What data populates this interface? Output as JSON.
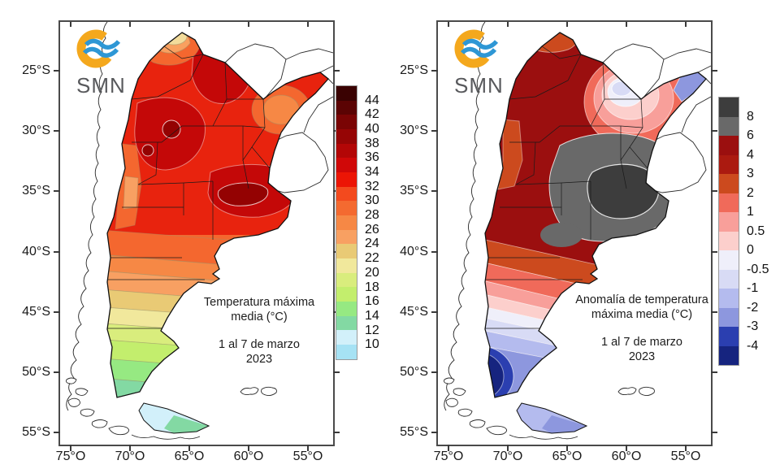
{
  "left_panel": {
    "logo_text": "SMN",
    "caption": {
      "title_line1": "Temperatura máxima",
      "title_line2": "media (°C)",
      "date_line1": "1 al 7 de marzo",
      "date_line2": "2023"
    },
    "y_ticks": [
      "25°S",
      "30°S",
      "35°S",
      "40°S",
      "45°S",
      "50°S",
      "55°S"
    ],
    "x_ticks": [
      "75°O",
      "70°O",
      "65°O",
      "60°O",
      "55°O"
    ],
    "colorbar": {
      "unit": "°C",
      "labels": [
        "44",
        "42",
        "40",
        "38",
        "36",
        "34",
        "32",
        "30",
        "28",
        "26",
        "24",
        "22",
        "20",
        "18",
        "16",
        "14",
        "12",
        "10"
      ],
      "colors": [
        "#3a0202",
        "#5b0303",
        "#7a0404",
        "#960505",
        "#b30606",
        "#d00808",
        "#ec1505",
        "#f34a1e",
        "#f46a30",
        "#f68845",
        "#f8a062",
        "#e9ca75",
        "#f1e89c",
        "#d9ed7d",
        "#c3ee6d",
        "#96e982",
        "#83d9a3",
        "#d2f0fa",
        "#a6e2f4"
      ]
    }
  },
  "right_panel": {
    "logo_text": "SMN",
    "caption": {
      "title_line1": "Anomalía de temperatura",
      "title_line2": "máxima media (°C)",
      "date_line1": "1 al 7 de marzo",
      "date_line2": "2023"
    },
    "y_ticks": [
      "25°S",
      "30°S",
      "35°S",
      "40°S",
      "45°S",
      "50°S",
      "55°S"
    ],
    "x_ticks": [
      "75°O",
      "70°O",
      "65°O",
      "60°O",
      "55°O"
    ],
    "colorbar": {
      "unit": "°C",
      "labels": [
        "8",
        "6",
        "4",
        "3",
        "2",
        "1",
        "0.5",
        "0",
        "-0.5",
        "-1",
        "-2",
        "-3",
        "-4"
      ],
      "colors": [
        "#3d3d3d",
        "#696969",
        "#9b0f0f",
        "#ab1a10",
        "#cc4a1e",
        "#f06a5a",
        "#f89f9a",
        "#fccfcc",
        "#efeffa",
        "#d8dbf5",
        "#b4bbee",
        "#8d97de",
        "#2b3fb0",
        "#16247f"
      ]
    }
  },
  "logo_colors": {
    "ring": "#f4a81d",
    "waves": "#2e97d5"
  }
}
